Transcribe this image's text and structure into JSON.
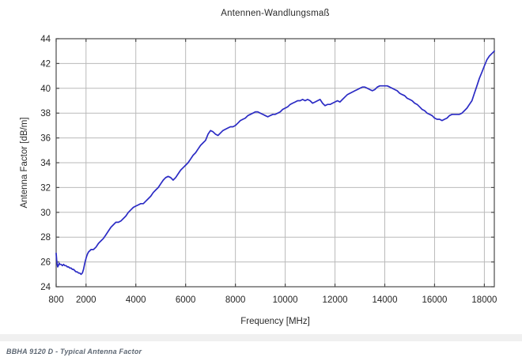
{
  "chart_data": {
    "type": "line",
    "title": "Antennen-Wandlungsmaß",
    "xlabel": "Frequency [MHz]",
    "ylabel": "Antenna Factor [dB/m]",
    "xlim": [
      800,
      18400
    ],
    "ylim": [
      24,
      44
    ],
    "x_ticks": [
      800,
      2000,
      4000,
      6000,
      8000,
      10000,
      12000,
      14000,
      16000,
      18000
    ],
    "y_ticks": [
      24,
      26,
      28,
      30,
      32,
      34,
      36,
      38,
      40,
      42,
      44
    ],
    "grid": true,
    "legend_position": "none",
    "line_color": "#2b2bc4",
    "series": [
      {
        "name": "Typical Antenna Factor",
        "points": [
          [
            800,
            26.7
          ],
          [
            820,
            26.2
          ],
          [
            840,
            25.8
          ],
          [
            860,
            25.6
          ],
          [
            890,
            25.7
          ],
          [
            920,
            25.9
          ],
          [
            950,
            25.8
          ],
          [
            1000,
            25.8
          ],
          [
            1050,
            25.7
          ],
          [
            1100,
            25.8
          ],
          [
            1150,
            25.7
          ],
          [
            1200,
            25.7
          ],
          [
            1250,
            25.6
          ],
          [
            1300,
            25.6
          ],
          [
            1350,
            25.5
          ],
          [
            1400,
            25.5
          ],
          [
            1450,
            25.4
          ],
          [
            1500,
            25.4
          ],
          [
            1550,
            25.3
          ],
          [
            1600,
            25.2
          ],
          [
            1650,
            25.2
          ],
          [
            1700,
            25.1
          ],
          [
            1750,
            25.1
          ],
          [
            1800,
            25.0
          ],
          [
            1850,
            25.1
          ],
          [
            1900,
            25.4
          ],
          [
            1950,
            25.9
          ],
          [
            2000,
            26.3
          ],
          [
            2050,
            26.6
          ],
          [
            2100,
            26.8
          ],
          [
            2150,
            26.9
          ],
          [
            2200,
            27.0
          ],
          [
            2300,
            27.0
          ],
          [
            2400,
            27.2
          ],
          [
            2500,
            27.5
          ],
          [
            2600,
            27.7
          ],
          [
            2700,
            27.9
          ],
          [
            2800,
            28.2
          ],
          [
            2900,
            28.5
          ],
          [
            3000,
            28.8
          ],
          [
            3100,
            29.0
          ],
          [
            3200,
            29.2
          ],
          [
            3300,
            29.2
          ],
          [
            3400,
            29.3
          ],
          [
            3500,
            29.5
          ],
          [
            3600,
            29.7
          ],
          [
            3700,
            30.0
          ],
          [
            3800,
            30.2
          ],
          [
            3900,
            30.4
          ],
          [
            4000,
            30.5
          ],
          [
            4100,
            30.6
          ],
          [
            4200,
            30.7
          ],
          [
            4300,
            30.7
          ],
          [
            4400,
            30.9
          ],
          [
            4500,
            31.1
          ],
          [
            4600,
            31.3
          ],
          [
            4700,
            31.6
          ],
          [
            4800,
            31.8
          ],
          [
            4900,
            32.0
          ],
          [
            5000,
            32.3
          ],
          [
            5100,
            32.6
          ],
          [
            5200,
            32.8
          ],
          [
            5300,
            32.9
          ],
          [
            5400,
            32.8
          ],
          [
            5500,
            32.6
          ],
          [
            5600,
            32.8
          ],
          [
            5700,
            33.1
          ],
          [
            5800,
            33.4
          ],
          [
            5900,
            33.6
          ],
          [
            6000,
            33.8
          ],
          [
            6100,
            34.0
          ],
          [
            6200,
            34.3
          ],
          [
            6300,
            34.6
          ],
          [
            6400,
            34.8
          ],
          [
            6500,
            35.1
          ],
          [
            6600,
            35.4
          ],
          [
            6700,
            35.6
          ],
          [
            6800,
            35.8
          ],
          [
            6900,
            36.3
          ],
          [
            7000,
            36.6
          ],
          [
            7100,
            36.5
          ],
          [
            7200,
            36.3
          ],
          [
            7300,
            36.2
          ],
          [
            7400,
            36.4
          ],
          [
            7500,
            36.6
          ],
          [
            7600,
            36.7
          ],
          [
            7700,
            36.8
          ],
          [
            7800,
            36.9
          ],
          [
            7900,
            36.9
          ],
          [
            8000,
            37.0
          ],
          [
            8100,
            37.2
          ],
          [
            8200,
            37.4
          ],
          [
            8300,
            37.5
          ],
          [
            8400,
            37.6
          ],
          [
            8500,
            37.8
          ],
          [
            8600,
            37.9
          ],
          [
            8700,
            38.0
          ],
          [
            8800,
            38.1
          ],
          [
            8900,
            38.1
          ],
          [
            9000,
            38.0
          ],
          [
            9100,
            37.9
          ],
          [
            9200,
            37.8
          ],
          [
            9300,
            37.7
          ],
          [
            9400,
            37.8
          ],
          [
            9500,
            37.9
          ],
          [
            9600,
            37.9
          ],
          [
            9700,
            38.0
          ],
          [
            9800,
            38.1
          ],
          [
            9900,
            38.3
          ],
          [
            10000,
            38.4
          ],
          [
            10100,
            38.5
          ],
          [
            10200,
            38.7
          ],
          [
            10300,
            38.8
          ],
          [
            10400,
            38.9
          ],
          [
            10500,
            39.0
          ],
          [
            10600,
            39.0
          ],
          [
            10700,
            39.1
          ],
          [
            10800,
            39.0
          ],
          [
            10900,
            39.1
          ],
          [
            11000,
            39.0
          ],
          [
            11100,
            38.8
          ],
          [
            11200,
            38.9
          ],
          [
            11300,
            39.0
          ],
          [
            11400,
            39.1
          ],
          [
            11500,
            38.8
          ],
          [
            11600,
            38.6
          ],
          [
            11700,
            38.7
          ],
          [
            11800,
            38.7
          ],
          [
            11900,
            38.8
          ],
          [
            12000,
            38.9
          ],
          [
            12100,
            39.0
          ],
          [
            12200,
            38.9
          ],
          [
            12300,
            39.1
          ],
          [
            12400,
            39.3
          ],
          [
            12500,
            39.5
          ],
          [
            12600,
            39.6
          ],
          [
            12700,
            39.7
          ],
          [
            12800,
            39.8
          ],
          [
            12900,
            39.9
          ],
          [
            13000,
            40.0
          ],
          [
            13100,
            40.1
          ],
          [
            13200,
            40.1
          ],
          [
            13300,
            40.0
          ],
          [
            13400,
            39.9
          ],
          [
            13500,
            39.8
          ],
          [
            13600,
            39.9
          ],
          [
            13700,
            40.1
          ],
          [
            13800,
            40.2
          ],
          [
            13900,
            40.2
          ],
          [
            14000,
            40.2
          ],
          [
            14100,
            40.2
          ],
          [
            14200,
            40.1
          ],
          [
            14300,
            40.0
          ],
          [
            14400,
            39.9
          ],
          [
            14500,
            39.8
          ],
          [
            14600,
            39.6
          ],
          [
            14700,
            39.5
          ],
          [
            14800,
            39.4
          ],
          [
            14900,
            39.2
          ],
          [
            15000,
            39.1
          ],
          [
            15100,
            39.0
          ],
          [
            15200,
            38.8
          ],
          [
            15300,
            38.7
          ],
          [
            15400,
            38.5
          ],
          [
            15500,
            38.3
          ],
          [
            15600,
            38.2
          ],
          [
            15700,
            38.0
          ],
          [
            15800,
            37.9
          ],
          [
            15900,
            37.8
          ],
          [
            16000,
            37.6
          ],
          [
            16100,
            37.5
          ],
          [
            16200,
            37.5
          ],
          [
            16300,
            37.4
          ],
          [
            16400,
            37.5
          ],
          [
            16500,
            37.6
          ],
          [
            16600,
            37.8
          ],
          [
            16700,
            37.9
          ],
          [
            16800,
            37.9
          ],
          [
            16900,
            37.9
          ],
          [
            17000,
            37.9
          ],
          [
            17100,
            38.0
          ],
          [
            17200,
            38.2
          ],
          [
            17300,
            38.4
          ],
          [
            17400,
            38.7
          ],
          [
            17500,
            39.0
          ],
          [
            17600,
            39.6
          ],
          [
            17700,
            40.2
          ],
          [
            17800,
            40.8
          ],
          [
            17900,
            41.3
          ],
          [
            18000,
            41.8
          ],
          [
            18100,
            42.3
          ],
          [
            18200,
            42.6
          ],
          [
            18300,
            42.8
          ],
          [
            18400,
            43.0
          ]
        ]
      }
    ]
  },
  "caption": "BBHA 9120 D - Typical Antenna Factor",
  "colors": {
    "axis": "#4b4b4b",
    "grid": "#bababa",
    "tick_text": "#262626",
    "curve": "#2b2bc4",
    "caption_text": "#5c6672",
    "divider": "#f0f0f0",
    "background": "#ffffff"
  }
}
